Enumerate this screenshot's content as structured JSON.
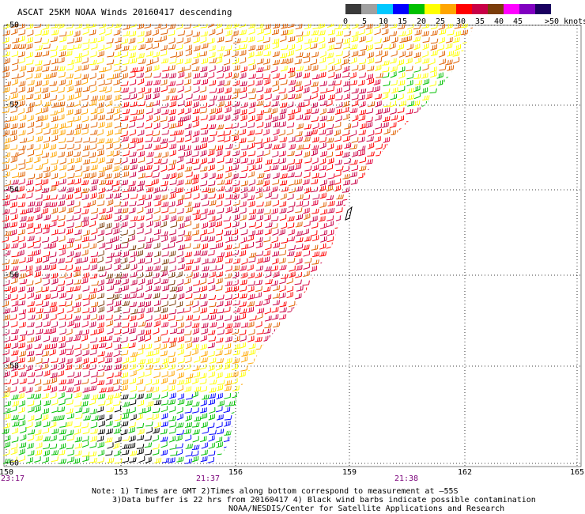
{
  "title": "ASCAT 25KM NOAA Winds 20160417 descending",
  "legend": {
    "colors": [
      "#3a3a3a",
      "#a0a0a0",
      "#00c8ff",
      "#0000ff",
      "#00c000",
      "#ffff00",
      "#ffa500",
      "#ff0000",
      "#c80046",
      "#7a3c0a",
      "#ff00ff",
      "#8000c0",
      "#1a0060"
    ],
    "labels": [
      "0",
      "5",
      "10",
      "15",
      "20",
      "25",
      "30",
      "35",
      "40",
      "45",
      ">50 knots"
    ]
  },
  "axes": {
    "x_labels": [
      "150",
      "153",
      "156",
      "159",
      "162",
      "165"
    ],
    "y_labels": [
      "-50",
      "-52",
      "-54",
      "-56",
      "-58",
      "-60"
    ]
  },
  "times": [
    {
      "label": "23:17"
    },
    {
      "label": "21:37"
    },
    {
      "label": "21:38"
    }
  ],
  "notes": {
    "line1": "Note: 1) Times are GMT 2)Times along bottom correspond to measurement at —55S",
    "line2": "3)Data buffer is 22 hrs from 20160417 4) Black wind barbs indicate possible contamination",
    "line3": "NOAA/NESDIS/Center for Satellite Applications and Research"
  },
  "swath": {
    "wind_colors": [
      "#ffff00",
      "#ffa500",
      "#e06000",
      "#ff0000",
      "#c80046",
      "#e0003c",
      "#7a3c0a",
      "#000000",
      "#00c000",
      "#0000ff",
      "#ff00ff"
    ]
  }
}
